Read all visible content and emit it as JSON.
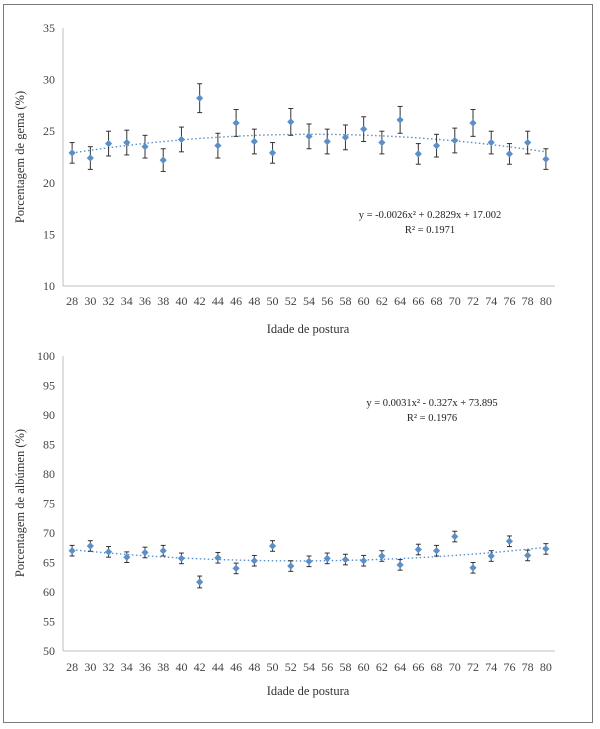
{
  "chart_data": [
    {
      "type": "scatter",
      "ylabel": "Porcentagem de gema (%)",
      "xlabel": "Idade de postura",
      "ylim": [
        10,
        35
      ],
      "yticks": [
        10,
        15,
        20,
        25,
        30,
        35
      ],
      "x": [
        28,
        30,
        32,
        34,
        36,
        38,
        40,
        42,
        44,
        46,
        48,
        50,
        52,
        54,
        56,
        58,
        60,
        62,
        64,
        66,
        68,
        70,
        72,
        74,
        76,
        78,
        80
      ],
      "y": [
        22.9,
        22.4,
        23.8,
        23.9,
        23.5,
        22.2,
        24.2,
        28.2,
        23.6,
        25.8,
        24.0,
        22.9,
        25.9,
        24.5,
        24.0,
        24.4,
        25.2,
        23.9,
        26.1,
        22.8,
        23.6,
        24.1,
        25.8,
        23.9,
        22.8,
        23.9,
        22.3
      ],
      "error": [
        1.0,
        1.1,
        1.2,
        1.2,
        1.1,
        1.1,
        1.2,
        1.4,
        1.2,
        1.3,
        1.2,
        1.0,
        1.3,
        1.2,
        1.2,
        1.2,
        1.2,
        1.1,
        1.3,
        1.0,
        1.1,
        1.2,
        1.3,
        1.1,
        1.0,
        1.1,
        1.0
      ],
      "trendline": {
        "a": -0.0026,
        "b": 0.2829,
        "c": 17.002
      },
      "equation": "y = -0.0026x² + 0.2829x + 17.002",
      "r2": "R² = 0.1971"
    },
    {
      "type": "scatter",
      "ylabel": "Porcentagem de albúmen (%)",
      "xlabel": "Idade de postura",
      "ylim": [
        50,
        100
      ],
      "yticks": [
        50,
        55,
        60,
        65,
        70,
        75,
        80,
        85,
        90,
        95,
        100
      ],
      "x": [
        28,
        30,
        32,
        34,
        36,
        38,
        40,
        42,
        44,
        46,
        48,
        50,
        52,
        54,
        56,
        58,
        60,
        62,
        64,
        66,
        68,
        70,
        72,
        74,
        76,
        78,
        80
      ],
      "y": [
        67.0,
        67.8,
        66.8,
        65.9,
        66.7,
        67.0,
        65.7,
        61.7,
        65.8,
        64.0,
        65.3,
        67.8,
        64.4,
        65.2,
        65.7,
        65.5,
        65.3,
        66.1,
        64.6,
        67.2,
        67.0,
        69.4,
        64.1,
        66.1,
        68.6,
        66.2,
        67.3
      ],
      "error": [
        0.9,
        0.9,
        0.9,
        0.9,
        0.9,
        0.9,
        0.9,
        1.0,
        0.9,
        0.9,
        0.9,
        0.9,
        0.9,
        0.9,
        0.9,
        0.9,
        0.9,
        0.9,
        0.9,
        0.9,
        0.9,
        0.9,
        0.9,
        0.9,
        0.9,
        0.9,
        0.9
      ],
      "trendline": {
        "a": 0.0031,
        "b": -0.327,
        "c": 73.895
      },
      "equation": "y = 0.0031x² - 0.327x + 73.895",
      "r2": "R² = 0.1976"
    }
  ]
}
